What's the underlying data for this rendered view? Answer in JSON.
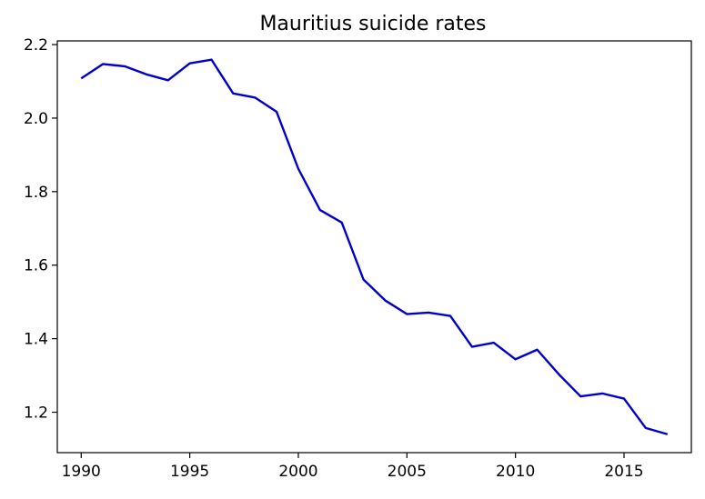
{
  "chart_data": {
    "type": "line",
    "title": "Mauritius suicide rates",
    "xlabel": "",
    "ylabel": "",
    "xlim": [
      1988.9,
      2018.1
    ],
    "ylim": [
      1.09,
      2.21
    ],
    "xticks": [
      1990,
      1995,
      2000,
      2005,
      2010,
      2015
    ],
    "yticks": [
      1.2,
      1.4,
      1.6,
      1.8,
      2.0,
      2.2
    ],
    "ytick_labels": [
      "1.2",
      "1.4",
      "1.6",
      "1.8",
      "2.0",
      "2.2"
    ],
    "grid": false,
    "line_color": "#0000cc",
    "series": [
      {
        "x": [
          1990,
          1991,
          1992,
          1993,
          1994,
          1995,
          1996,
          1997,
          1998,
          1999,
          2000,
          2001,
          2002,
          2003,
          2004,
          2005,
          2006,
          2007,
          2008,
          2009,
          2010,
          2011,
          2012,
          2013,
          2014,
          2015,
          2016,
          2017
        ],
        "values": [
          2.108,
          2.147,
          2.141,
          2.119,
          2.103,
          2.149,
          2.159,
          2.067,
          2.056,
          2.017,
          1.862,
          1.75,
          1.716,
          1.561,
          1.504,
          1.467,
          1.471,
          1.462,
          1.378,
          1.389,
          1.344,
          1.37,
          1.303,
          1.243,
          1.251,
          1.237,
          1.157,
          1.14
        ]
      }
    ]
  }
}
